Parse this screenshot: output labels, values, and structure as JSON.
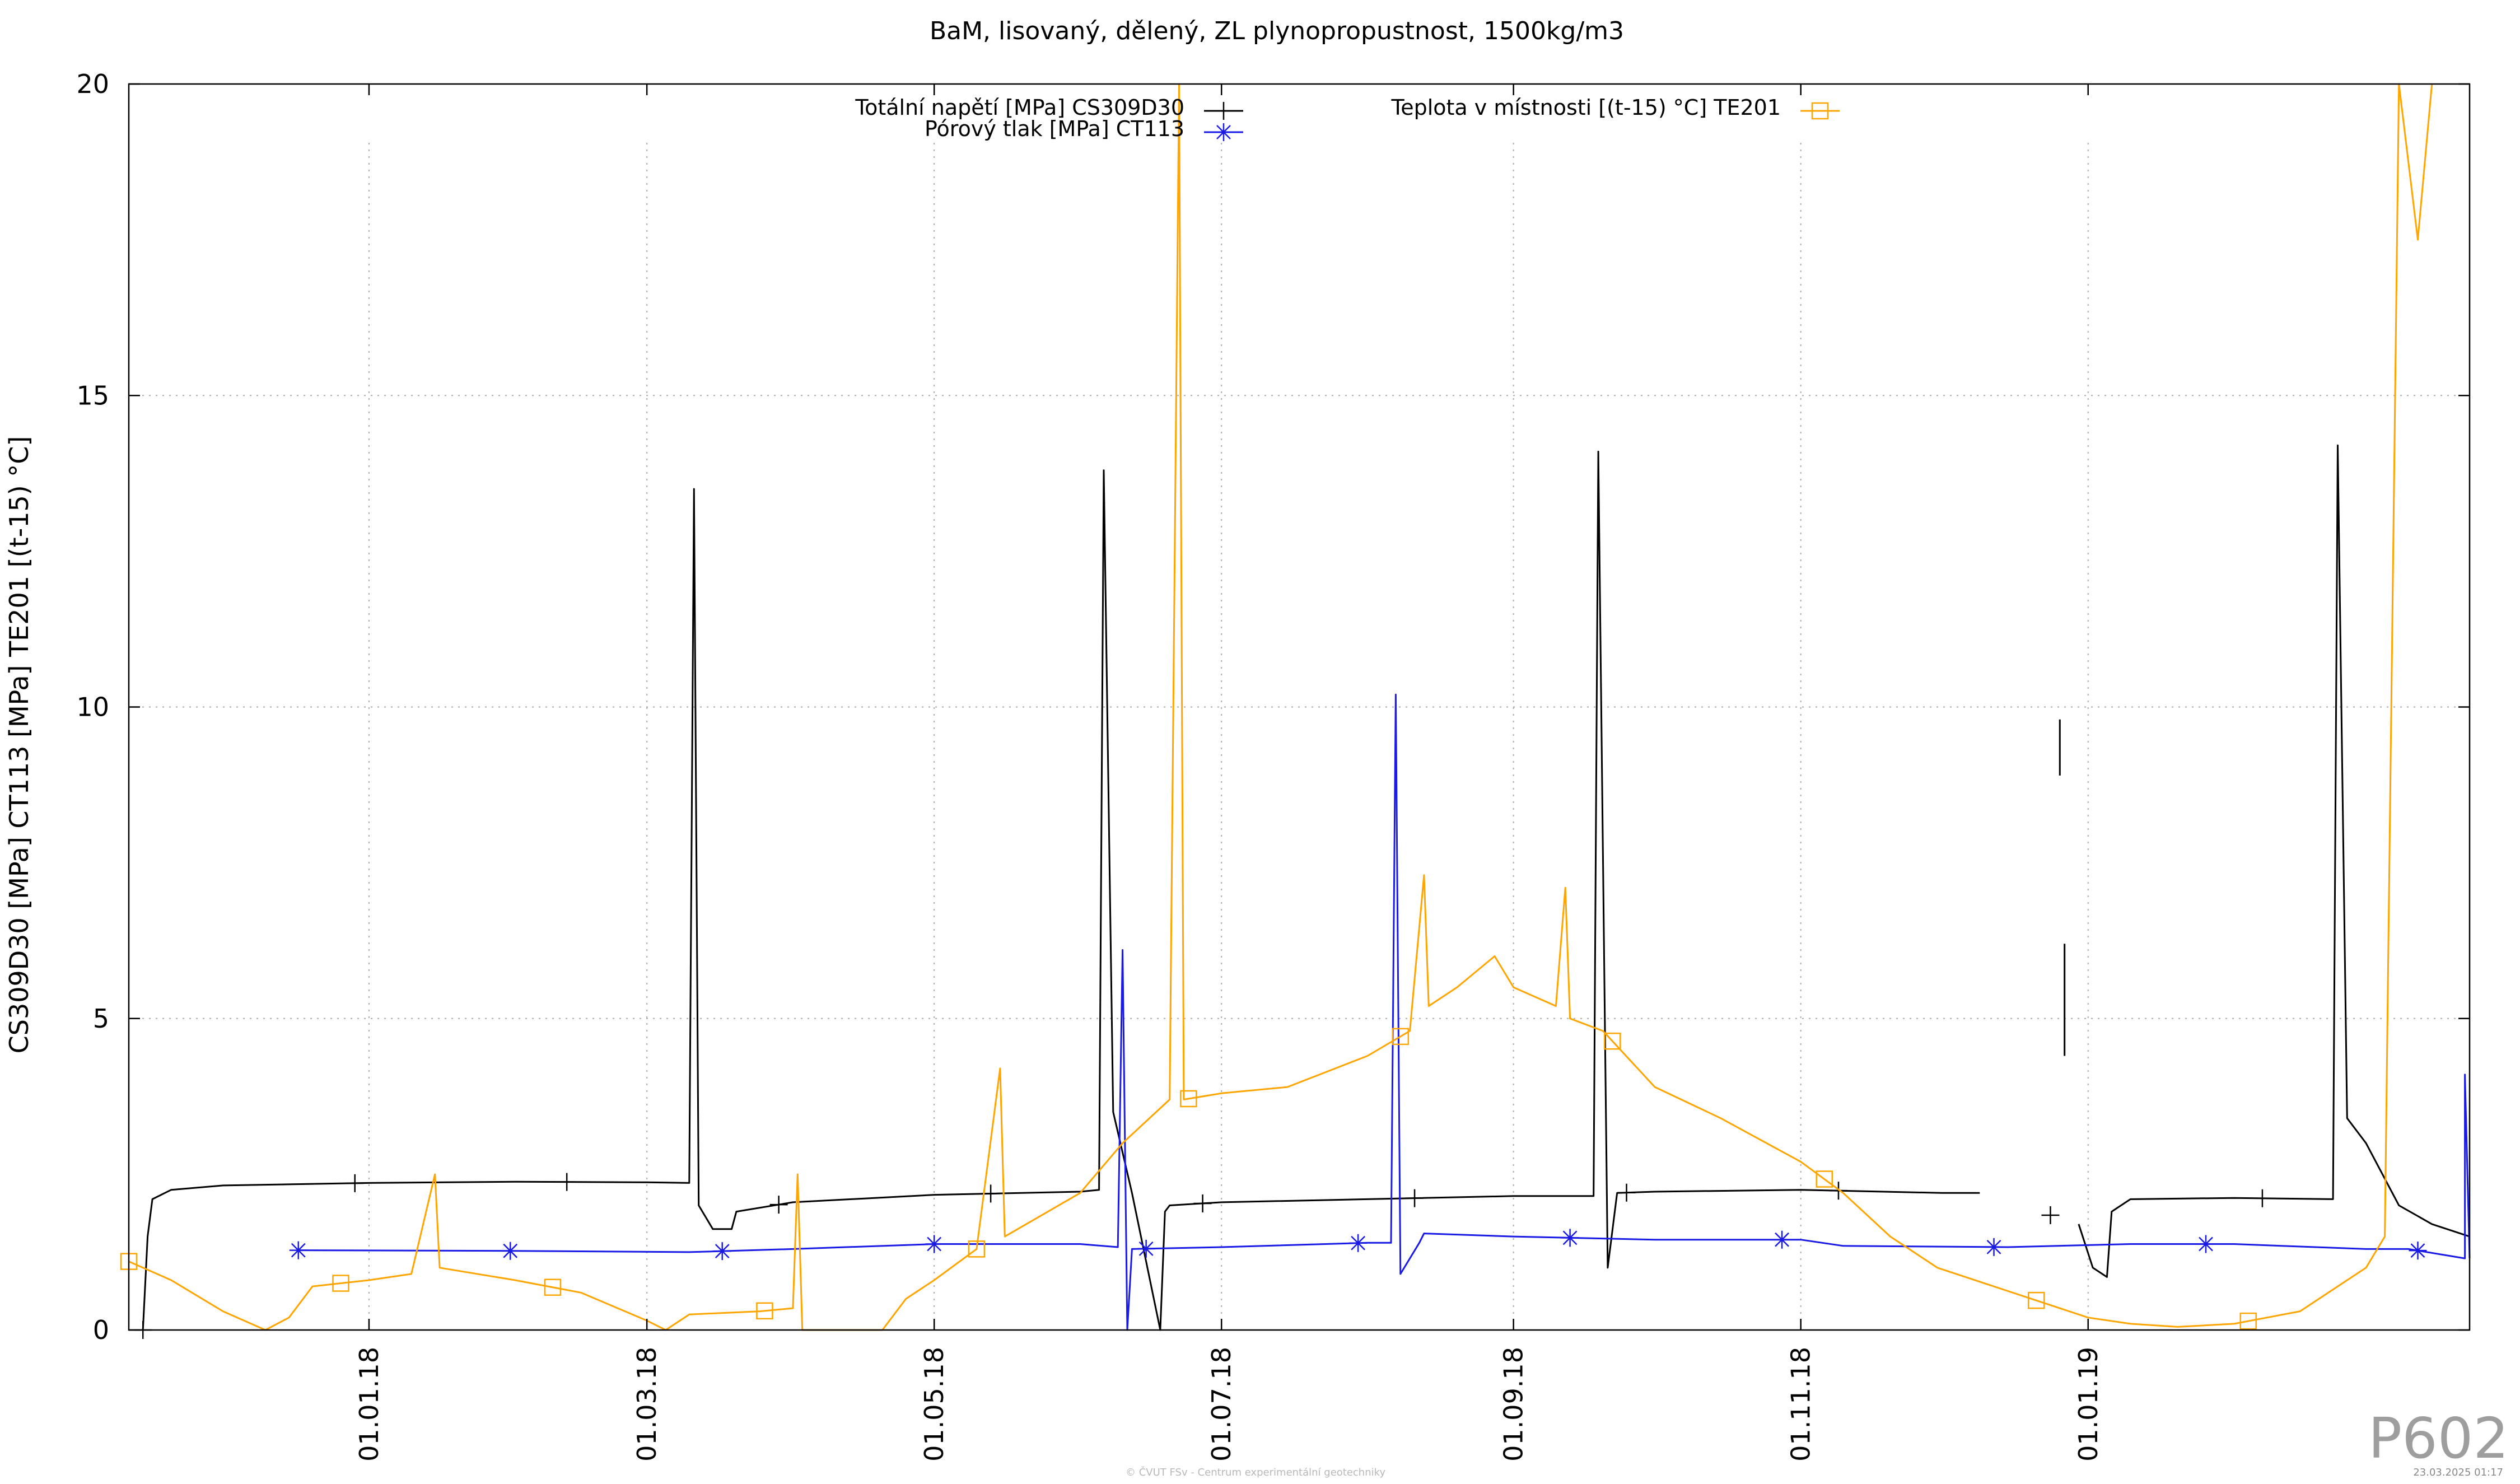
{
  "chart_data": {
    "type": "line",
    "title": "BaM, lisovaný, dělený, ZL plynopropustnost, 1500kg/m3",
    "ylabel": "CS309D30 [MPa] CT113 [MPa] TE201 [(t-15) °C]",
    "xlabel": "",
    "ylim": [
      0,
      20
    ],
    "xlim": [
      "2017-11-11",
      "2019-03-23"
    ],
    "x_ticks": [
      "01.01.18",
      "01.03.18",
      "01.05.18",
      "01.07.18",
      "01.09.18",
      "01.11.18",
      "01.01.19"
    ],
    "x_tick_dates": [
      "2018-01-01",
      "2018-03-01",
      "2018-05-01",
      "2018-07-01",
      "2018-09-01",
      "2018-11-01",
      "2019-01-01"
    ],
    "y_ticks": [
      0,
      5,
      10,
      15,
      20
    ],
    "grid": true,
    "legend_placement": "top",
    "series": [
      {
        "name": "Totální napětí [MPa] CS309D30",
        "color": "#000000",
        "marker": "plus",
        "points": [
          [
            "2017-11-14",
            0.0
          ],
          [
            "2017-11-15",
            1.5
          ],
          [
            "2017-11-16",
            2.1
          ],
          [
            "2017-11-20",
            2.25
          ],
          [
            "2017-12-01",
            2.32
          ],
          [
            "2018-01-01",
            2.36
          ],
          [
            "2018-02-01",
            2.38
          ],
          [
            "2018-03-01",
            2.37
          ],
          [
            "2018-03-10",
            2.36
          ],
          [
            "2018-03-11",
            13.5
          ],
          [
            "2018-03-12",
            2.0
          ],
          [
            "2018-03-15",
            1.62
          ],
          [
            "2018-03-19",
            1.62
          ],
          [
            "2018-03-20",
            1.9
          ],
          [
            "2018-04-01",
            2.05
          ],
          [
            "2018-05-01",
            2.17
          ],
          [
            "2018-06-01",
            2.22
          ],
          [
            "2018-06-05",
            2.25
          ],
          [
            "2018-06-06",
            13.8
          ],
          [
            "2018-06-08",
            3.5
          ],
          [
            "2018-06-12",
            2.2
          ],
          [
            "2018-06-18",
            0.0
          ],
          [
            "2018-06-19",
            1.9
          ],
          [
            "2018-06-20",
            2.0
          ],
          [
            "2018-07-01",
            2.05
          ],
          [
            "2018-08-01",
            2.1
          ],
          [
            "2018-09-01",
            2.15
          ],
          [
            "2018-09-18",
            2.15
          ],
          [
            "2018-09-19",
            14.1
          ],
          [
            "2018-09-21",
            1.0
          ],
          [
            "2018-09-23",
            2.2
          ],
          [
            "2018-10-01",
            2.22
          ],
          [
            "2018-11-01",
            2.25
          ],
          [
            "2018-12-01",
            2.2
          ],
          [
            "2018-12-09",
            2.2
          ]
        ],
        "points_after_gap": [
          [
            "2018-12-30",
            1.7
          ],
          [
            "2019-01-02",
            1.0
          ],
          [
            "2019-01-05",
            0.85
          ],
          [
            "2019-01-06",
            1.9
          ],
          [
            "2019-01-10",
            2.1
          ],
          [
            "2019-02-01",
            2.12
          ],
          [
            "2019-02-22",
            2.1
          ],
          [
            "2019-02-23",
            14.2
          ],
          [
            "2019-02-25",
            3.4
          ],
          [
            "2019-03-01",
            3.0
          ],
          [
            "2019-03-08",
            2.0
          ],
          [
            "2019-03-15",
            1.7
          ],
          [
            "2019-03-23",
            1.5
          ]
        ],
        "fragments": [
          [
            "2018-12-26",
            9.8,
            8.9
          ],
          [
            "2018-12-27",
            6.2,
            4.4
          ]
        ]
      },
      {
        "name": "Pórový tlak [MPa] CT113",
        "color": "#1a1ae6",
        "marker": "star",
        "points": [
          [
            "2017-12-17",
            1.28
          ],
          [
            "2018-02-01",
            1.27
          ],
          [
            "2018-03-10",
            1.25
          ],
          [
            "2018-04-01",
            1.3
          ],
          [
            "2018-05-01",
            1.38
          ],
          [
            "2018-06-01",
            1.38
          ],
          [
            "2018-06-09",
            1.33
          ],
          [
            "2018-06-10",
            6.1
          ],
          [
            "2018-06-11",
            0.0
          ],
          [
            "2018-06-12",
            1.3
          ],
          [
            "2018-07-01",
            1.33
          ],
          [
            "2018-08-01",
            1.4
          ],
          [
            "2018-08-06",
            1.4
          ],
          [
            "2018-08-07",
            10.2
          ],
          [
            "2018-08-08",
            0.9
          ],
          [
            "2018-08-12",
            1.4
          ],
          [
            "2018-08-13",
            1.55
          ],
          [
            "2018-09-01",
            1.5
          ],
          [
            "2018-10-01",
            1.45
          ],
          [
            "2018-11-01",
            1.45
          ],
          [
            "2018-11-10",
            1.35
          ],
          [
            "2018-12-15",
            1.33
          ],
          [
            "2019-01-10",
            1.38
          ],
          [
            "2019-02-01",
            1.38
          ],
          [
            "2019-03-01",
            1.3
          ],
          [
            "2019-03-10",
            1.3
          ],
          [
            "2019-03-22",
            1.15
          ],
          [
            "2019-03-22",
            4.1
          ],
          [
            "2019-03-23",
            1.15
          ]
        ]
      },
      {
        "name": "Teplota v místnosti [(t-15) °C] TE201",
        "color": "#ffa500",
        "marker": "square",
        "points": [
          [
            "2017-11-11",
            1.1
          ],
          [
            "2017-11-20",
            0.8
          ],
          [
            "2017-12-01",
            0.3
          ],
          [
            "2017-12-10",
            0.0
          ],
          [
            "2017-12-15",
            0.2
          ],
          [
            "2017-12-20",
            0.7
          ],
          [
            "2018-01-01",
            0.8
          ],
          [
            "2018-01-10",
            0.9
          ],
          [
            "2018-01-15",
            2.5
          ],
          [
            "2018-01-16",
            1.0
          ],
          [
            "2018-02-01",
            0.8
          ],
          [
            "2018-02-15",
            0.6
          ],
          [
            "2018-03-01",
            0.15
          ],
          [
            "2018-03-05",
            0.0
          ],
          [
            "2018-03-10",
            0.25
          ],
          [
            "2018-03-25",
            0.3
          ],
          [
            "2018-04-01",
            0.35
          ],
          [
            "2018-04-02",
            2.5
          ],
          [
            "2018-04-03",
            0.0
          ],
          [
            "2018-04-20",
            0.0
          ],
          [
            "2018-04-25",
            0.5
          ],
          [
            "2018-05-01",
            0.8
          ],
          [
            "2018-05-10",
            1.3
          ],
          [
            "2018-05-15",
            4.2
          ],
          [
            "2018-05-16",
            1.5
          ],
          [
            "2018-06-01",
            2.2
          ],
          [
            "2018-06-10",
            3.0
          ],
          [
            "2018-06-20",
            3.7
          ],
          [
            "2018-06-22",
            20.0
          ],
          [
            "2018-06-23",
            3.7
          ],
          [
            "2018-07-01",
            3.8
          ],
          [
            "2018-07-15",
            3.9
          ],
          [
            "2018-08-01",
            4.4
          ],
          [
            "2018-08-10",
            4.8
          ],
          [
            "2018-08-13",
            7.3
          ],
          [
            "2018-08-14",
            5.2
          ],
          [
            "2018-08-20",
            5.5
          ],
          [
            "2018-08-28",
            6.0
          ],
          [
            "2018-09-01",
            5.5
          ],
          [
            "2018-09-10",
            5.2
          ],
          [
            "2018-09-12",
            7.1
          ],
          [
            "2018-09-13",
            5.0
          ],
          [
            "2018-09-20",
            4.8
          ],
          [
            "2018-10-01",
            3.9
          ],
          [
            "2018-10-15",
            3.4
          ],
          [
            "2018-11-01",
            2.7
          ],
          [
            "2018-11-10",
            2.2
          ],
          [
            "2018-11-20",
            1.5
          ],
          [
            "2018-11-30",
            1.0
          ],
          [
            "2019-01-01",
            0.2
          ],
          [
            "2019-01-10",
            0.1
          ],
          [
            "2019-01-20",
            0.05
          ],
          [
            "2019-02-01",
            0.1
          ],
          [
            "2019-02-15",
            0.3
          ],
          [
            "2019-03-01",
            1.0
          ],
          [
            "2019-03-05",
            1.5
          ],
          [
            "2019-03-08",
            20.0
          ],
          [
            "2019-03-12",
            17.5
          ],
          [
            "2019-03-15",
            20.0
          ]
        ]
      }
    ]
  },
  "page_label": "P602",
  "footer_left": "© ČVUT FSv - Centrum experimentální geotechniky",
  "footer_right": "23.03.2025 01:17"
}
